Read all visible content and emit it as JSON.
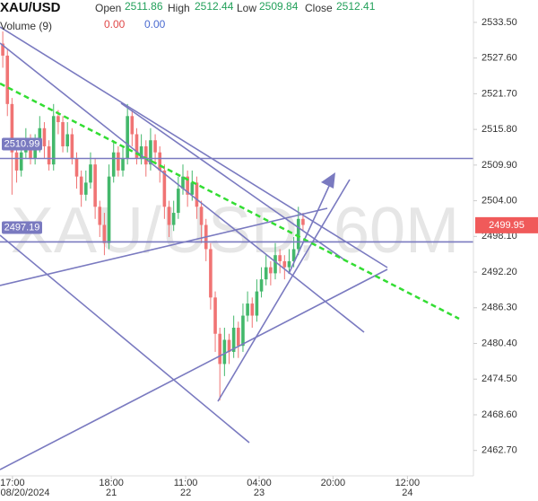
{
  "chart_data": {
    "type": "candlestick",
    "title": "XAU/USD",
    "ohlc_legend": [
      {
        "label": "Open",
        "value": 2511.86
      },
      {
        "label": "High",
        "value": 2512.44
      },
      {
        "label": "Low",
        "value": 2509.84
      },
      {
        "label": "Close",
        "value": 2512.41
      }
    ],
    "volume": {
      "label": "Volume (9)",
      "values": [
        {
          "value": 0,
          "label": "0.00"
        },
        {
          "value": 0,
          "label": "0.00"
        }
      ]
    },
    "watermark": "XAU/USD, 60M",
    "x": [
      0,
      1,
      2,
      3,
      4,
      5,
      6,
      7,
      8,
      9,
      10,
      11,
      12,
      13,
      14,
      15,
      16,
      17,
      18,
      19,
      20,
      21,
      22,
      23,
      24,
      25,
      26,
      27,
      28,
      29,
      30,
      31,
      32,
      33,
      34,
      35,
      36,
      37,
      38,
      39,
      40,
      41,
      42,
      43,
      44,
      45,
      46,
      47,
      48,
      49,
      50,
      51,
      52,
      53,
      54,
      55,
      56,
      57,
      58,
      59,
      60,
      61,
      62,
      63,
      64,
      65
    ],
    "open": [
      2530,
      2528,
      2520,
      2512,
      2509,
      2512,
      2514,
      2511,
      2513,
      2516,
      2513,
      2510,
      2518,
      2517,
      2513,
      2515,
      2511,
      2508,
      2505,
      2507,
      2510,
      2503,
      2500,
      2497,
      2508,
      2512,
      2509,
      2511,
      2518,
      2515,
      2511,
      2513,
      2510,
      2514,
      2512,
      2509,
      2503,
      2500,
      2502,
      2506,
      2508,
      2505,
      2507,
      2503,
      2500,
      2496,
      2488,
      2482,
      2477,
      2481,
      2479,
      2483,
      2480,
      2485,
      2487,
      2485,
      2489,
      2491,
      2493,
      2492,
      2495,
      2494,
      2493,
      2494,
      2496,
      2501
    ],
    "high": [
      2532,
      2529,
      2521,
      2513,
      2514,
      2516,
      2515,
      2515,
      2518,
      2517,
      2514,
      2520,
      2519,
      2518,
      2517,
      2516,
      2512,
      2509,
      2509,
      2512,
      2511,
      2504,
      2502,
      2510,
      2514,
      2513,
      2513,
      2520,
      2519,
      2516,
      2515,
      2514,
      2516,
      2515,
      2513,
      2510,
      2504,
      2504,
      2508,
      2510,
      2509,
      2509,
      2508,
      2504,
      2501,
      2497,
      2489,
      2483,
      2483,
      2482,
      2485,
      2484,
      2487,
      2489,
      2488,
      2491,
      2493,
      2495,
      2494,
      2497,
      2496,
      2495,
      2496,
      2498,
      2503,
      2502
    ],
    "low": [
      2526,
      2518,
      2505,
      2507,
      2508,
      2511,
      2510,
      2510,
      2512,
      2511,
      2509,
      2509,
      2515,
      2512,
      2512,
      2510,
      2506,
      2503,
      2504,
      2506,
      2501,
      2498,
      2495,
      2496,
      2507,
      2508,
      2508,
      2510,
      2513,
      2510,
      2510,
      2508,
      2509,
      2510,
      2507,
      2501,
      2498,
      2499,
      2501,
      2505,
      2503,
      2504,
      2501,
      2497,
      2494,
      2486,
      2479,
      2471,
      2475,
      2477,
      2478,
      2478,
      2479,
      2484,
      2483,
      2484,
      2488,
      2490,
      2490,
      2491,
      2492,
      2491,
      2492,
      2493,
      2495,
      2499
    ],
    "close": [
      2528,
      2520,
      2512,
      2509,
      2512,
      2514,
      2511,
      2513,
      2516,
      2513,
      2510,
      2518,
      2517,
      2513,
      2515,
      2511,
      2508,
      2505,
      2507,
      2510,
      2503,
      2500,
      2497,
      2508,
      2512,
      2509,
      2511,
      2518,
      2515,
      2511,
      2513,
      2510,
      2514,
      2512,
      2509,
      2503,
      2500,
      2502,
      2506,
      2508,
      2505,
      2507,
      2503,
      2500,
      2496,
      2488,
      2482,
      2477,
      2481,
      2479,
      2483,
      2480,
      2485,
      2487,
      2485,
      2489,
      2491,
      2493,
      2492,
      2495,
      2494,
      2493,
      2494,
      2496,
      2501,
      2500
    ],
    "up_color": "#43b86b",
    "down_color": "#f07474",
    "xlim": [
      -0.6,
      101.9
    ],
    "xticks": [
      {
        "value": 2.1,
        "label": "17:00"
      },
      {
        "value": 23.5,
        "label": "18:00"
      },
      {
        "value": 39.6,
        "label": "11:00"
      },
      {
        "value": 55.5,
        "label": "04:00"
      },
      {
        "value": 71.5,
        "label": "20:00"
      },
      {
        "value": 87.6,
        "label": "12:00"
      }
    ],
    "xsublabels": [
      "08/20/2024",
      "21",
      "22",
      "23",
      null,
      "24"
    ],
    "ylim": [
      2458.5,
      2537.2
    ],
    "yticks": [
      {
        "value": 2533.5,
        "label": "2533.50"
      },
      {
        "value": 2527.6,
        "label": "2527.60"
      },
      {
        "value": 2521.7,
        "label": "2521.70"
      },
      {
        "value": 2515.8,
        "label": "2515.80"
      },
      {
        "value": 2509.9,
        "label": "2509.90"
      },
      {
        "value": 2504,
        "label": "2504.00"
      },
      {
        "value": 2498.1,
        "label": "2498.10"
      },
      {
        "value": 2492.2,
        "label": "2492.20"
      },
      {
        "value": 2486.3,
        "label": "2486.30"
      },
      {
        "value": 2480.4,
        "label": "2480.40"
      },
      {
        "value": 2474.5,
        "label": "2474.50"
      },
      {
        "value": 2468.6,
        "label": "2468.60"
      },
      {
        "value": 2462.7,
        "label": "2462.70"
      }
    ],
    "price_lines": [
      2510.99,
      2497.19
    ],
    "line_color": "#7a7ac0",
    "last_price": 2499.95,
    "last_price_color": "#f05a5a"
  }
}
